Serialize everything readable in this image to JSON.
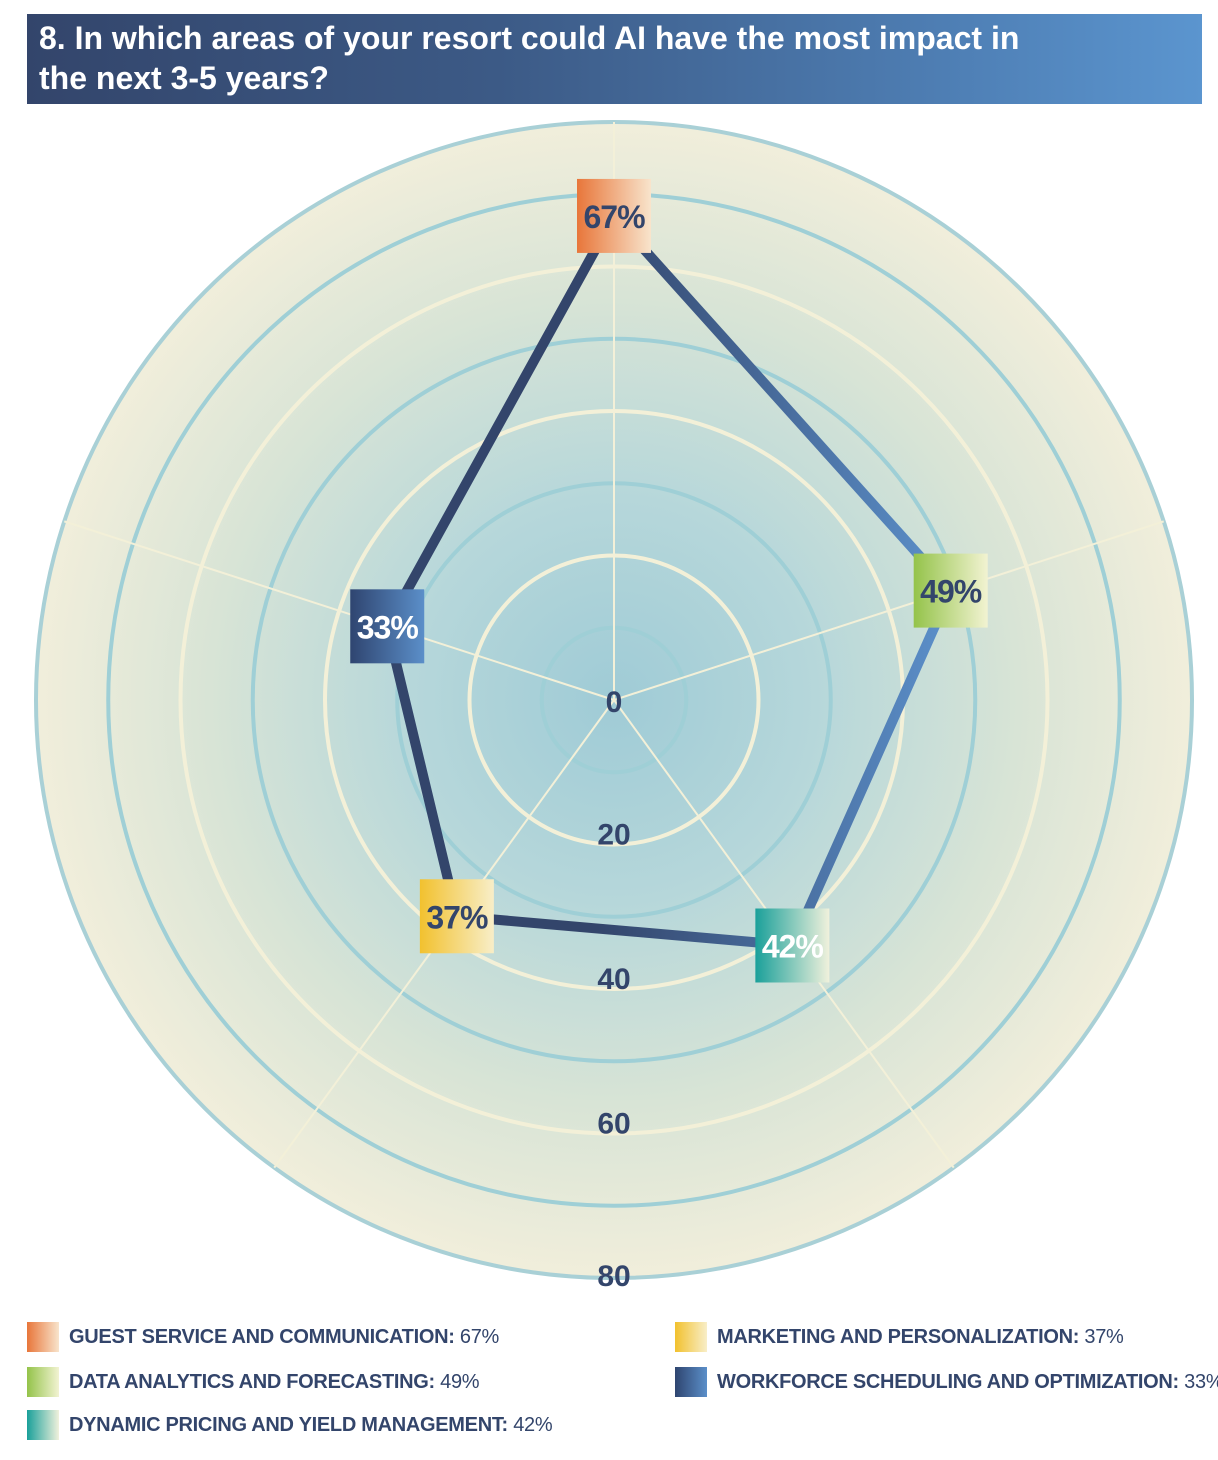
{
  "header": {
    "title": "8. In which areas of your resort could AI have the most impact in the next 3-5 years?"
  },
  "chart_data": {
    "type": "radar",
    "categories": [
      "GUEST SERVICE AND COMMUNICATION",
      "DATA ANALYTICS AND FORECASTING",
      "DYNAMIC PRICING AND YIELD MANAGEMENT",
      "MARKETING AND PERSONALIZATION",
      "WORKFORCE SCHEDULING AND OPTIMIZATION"
    ],
    "values": [
      67,
      49,
      42,
      37,
      33
    ],
    "value_labels": [
      "67%",
      "49%",
      "42%",
      "37%",
      "33%"
    ],
    "rmax": 80,
    "radial_ticks": [
      "0",
      "20",
      "40",
      "60",
      "80"
    ],
    "grid": true,
    "colors": {
      "line_dark": "#33456b",
      "line_light": "#5b8fc9",
      "guest": [
        "#e8763a",
        "#f8e4cc"
      ],
      "data": [
        "#94c34a",
        "#f2f3d2"
      ],
      "pricing": [
        "#1aa09a",
        "#f0f1dc"
      ],
      "marketing": [
        "#f2c12e",
        "#f8eec8"
      ],
      "workforce": [
        "#2f4570",
        "#5b8fc9"
      ]
    }
  },
  "legend": [
    {
      "name": "GUEST SERVICE AND COMMUNICATION:",
      "value": "67%",
      "color": "#e8763a",
      "color2": "#f8e4cc"
    },
    {
      "name": "DATA ANALYTICS AND FORECASTING:",
      "value": "49%",
      "color": "#94c34a",
      "color2": "#f2f3d2"
    },
    {
      "name": "DYNAMIC PRICING AND YIELD MANAGEMENT:",
      "value": "42%",
      "color": "#1aa09a",
      "color2": "#f0f1dc"
    },
    {
      "name": "MARKETING AND PERSONALIZATION:",
      "value": "37%",
      "color": "#f2c12e",
      "color2": "#f8eec8"
    },
    {
      "name": "WORKFORCE SCHEDULING AND OPTIMIZATION:",
      "value": "33%",
      "color": "#2f4570",
      "color2": "#5b8fc9"
    }
  ]
}
